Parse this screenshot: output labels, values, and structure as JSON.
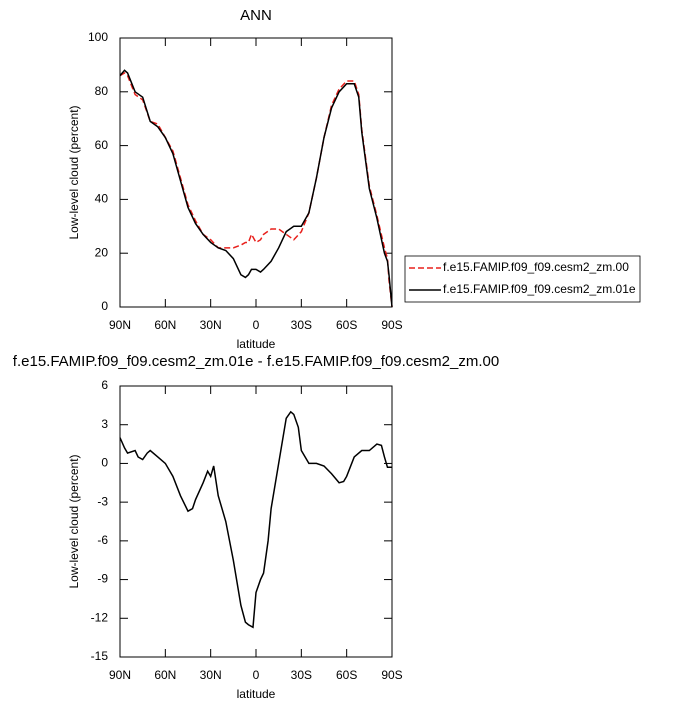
{
  "chart_data": [
    {
      "type": "line",
      "title": "ANN",
      "xlabel": "latitude",
      "ylabel": "Low-level cloud (percent)",
      "x": [
        90,
        87,
        85,
        80,
        75,
        70,
        65,
        60,
        55,
        50,
        45,
        40,
        35,
        30,
        25,
        20,
        15,
        10,
        7,
        5,
        3,
        0,
        -3,
        -5,
        -10,
        -15,
        -20,
        -25,
        -30,
        -35,
        -40,
        -45,
        -50,
        -55,
        -60,
        -65,
        -68,
        -70,
        -75,
        -80,
        -85,
        -87,
        -88,
        -90
      ],
      "series": [
        {
          "name": "f.e15.FAMIP.f09_f09.cesm2_zm.00",
          "color": "#e8201c",
          "dashed": true,
          "values": [
            86,
            87,
            86,
            79,
            77,
            69,
            68,
            63,
            58,
            48,
            38,
            32,
            27,
            25,
            22,
            22,
            22,
            23,
            24,
            24,
            27,
            24,
            25,
            27,
            29,
            29,
            27,
            25,
            28,
            35,
            48,
            63,
            75,
            81,
            84,
            84,
            79,
            66,
            45,
            34,
            22,
            18,
            10,
            0
          ]
        },
        {
          "name": "f.e15.FAMIP.f09_f09.cesm2_zm.01e",
          "color": "#000000",
          "dashed": false,
          "values": [
            86,
            88,
            87,
            80,
            78,
            69,
            67,
            63,
            57,
            47,
            37,
            31,
            27,
            24,
            22,
            21,
            18,
            12,
            11,
            12,
            14,
            14,
            13,
            14,
            17,
            22,
            28,
            30,
            30,
            35,
            48,
            63,
            74,
            80,
            83,
            83,
            78,
            65,
            44,
            33,
            20,
            17,
            12,
            0
          ]
        }
      ],
      "xlim": [
        90,
        -90
      ],
      "xticks": [
        {
          "value": 90,
          "label": "90N"
        },
        {
          "value": 60,
          "label": "60N"
        },
        {
          "value": 30,
          "label": "30N"
        },
        0,
        {
          "value": -30,
          "label": "30S"
        },
        {
          "value": -60,
          "label": "60S"
        },
        {
          "value": -90,
          "label": "90S"
        }
      ],
      "ylim": [
        0,
        100
      ],
      "yticks": [
        0,
        20,
        40,
        60,
        80,
        100
      ],
      "legend": "right"
    },
    {
      "type": "line",
      "title": "f.e15.FAMIP.f09_f09.cesm2_zm.01e - f.e15.FAMIP.f09_f09.cesm2_zm.00",
      "xlabel": "latitude",
      "ylabel": "Low-level cloud (percent)",
      "x": [
        90,
        87,
        85,
        80,
        78,
        75,
        72,
        70,
        65,
        60,
        55,
        50,
        45,
        42,
        40,
        35,
        32,
        30,
        28,
        25,
        20,
        15,
        10,
        7,
        5,
        2,
        0,
        -3,
        -5,
        -8,
        -10,
        -15,
        -20,
        -23,
        -25,
        -28,
        -30,
        -35,
        -40,
        -45,
        -50,
        -55,
        -58,
        -60,
        -65,
        -70,
        -75,
        -80,
        -83,
        -85,
        -87,
        -90
      ],
      "values": [
        2,
        1.2,
        0.8,
        1,
        0.5,
        0.3,
        0.8,
        1,
        0.5,
        0,
        -1,
        -2.5,
        -3.7,
        -3.5,
        -2.8,
        -1.5,
        -0.6,
        -1,
        -0.2,
        -2.5,
        -4.5,
        -7.5,
        -11,
        -12.3,
        -12.5,
        -12.7,
        -10,
        -9,
        -8.5,
        -6,
        -3.5,
        0,
        3.5,
        4,
        3.8,
        2.8,
        1,
        0,
        0,
        -0.2,
        -0.8,
        -1.5,
        -1.4,
        -1,
        0.5,
        1,
        1,
        1.5,
        1.4,
        0.5,
        -0.3,
        -0.3
      ],
      "color": "#000000",
      "xlim": [
        90,
        -90
      ],
      "xticks": [
        {
          "value": 90,
          "label": "90N"
        },
        {
          "value": 60,
          "label": "60N"
        },
        {
          "value": 30,
          "label": "30N"
        },
        0,
        {
          "value": -30,
          "label": "30S"
        },
        {
          "value": -60,
          "label": "60S"
        },
        {
          "value": -90,
          "label": "90S"
        }
      ],
      "ylim": [
        -15,
        6
      ],
      "yticks": [
        -15,
        -12,
        -9,
        -6,
        -3,
        0,
        3,
        6
      ]
    }
  ]
}
